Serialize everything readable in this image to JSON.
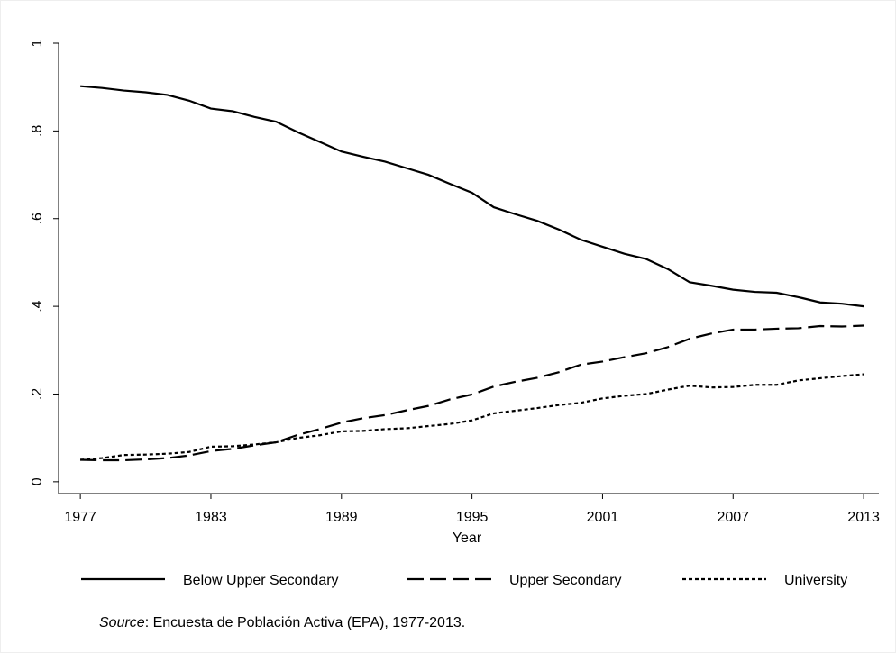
{
  "chart_data": {
    "type": "line",
    "x": [
      1977,
      1978,
      1979,
      1980,
      1981,
      1982,
      1983,
      1984,
      1985,
      1986,
      1987,
      1988,
      1989,
      1990,
      1991,
      1992,
      1993,
      1994,
      1995,
      1996,
      1997,
      1998,
      1999,
      2000,
      2001,
      2002,
      2003,
      2004,
      2005,
      2006,
      2007,
      2008,
      2009,
      2010,
      2011,
      2012,
      2013
    ],
    "series": [
      {
        "name": "Below Upper Secondary",
        "color": "#000000",
        "dash": "none",
        "values": [
          0.902,
          0.898,
          0.892,
          0.888,
          0.882,
          0.869,
          0.851,
          0.845,
          0.832,
          0.821,
          0.797,
          0.775,
          0.753,
          0.741,
          0.73,
          0.715,
          0.7,
          0.679,
          0.659,
          0.626,
          0.61,
          0.595,
          0.575,
          0.552,
          0.536,
          0.52,
          0.508,
          0.485,
          0.455,
          0.447,
          0.438,
          0.433,
          0.431,
          0.421,
          0.409,
          0.406,
          0.4
        ]
      },
      {
        "name": "Upper Secondary",
        "color": "#000000",
        "dash": "18 7",
        "values": [
          0.05,
          0.049,
          0.049,
          0.051,
          0.054,
          0.06,
          0.07,
          0.075,
          0.083,
          0.09,
          0.107,
          0.12,
          0.135,
          0.145,
          0.152,
          0.163,
          0.173,
          0.188,
          0.199,
          0.217,
          0.228,
          0.237,
          0.25,
          0.267,
          0.274,
          0.284,
          0.293,
          0.307,
          0.326,
          0.338,
          0.347,
          0.347,
          0.349,
          0.35,
          0.355,
          0.354,
          0.356
        ]
      },
      {
        "name": "University",
        "color": "#000000",
        "dash": "4 3",
        "values": [
          0.05,
          0.054,
          0.061,
          0.062,
          0.064,
          0.068,
          0.08,
          0.081,
          0.085,
          0.09,
          0.1,
          0.106,
          0.115,
          0.116,
          0.12,
          0.122,
          0.127,
          0.132,
          0.14,
          0.156,
          0.162,
          0.168,
          0.175,
          0.18,
          0.19,
          0.196,
          0.2,
          0.21,
          0.219,
          0.215,
          0.216,
          0.221,
          0.221,
          0.231,
          0.236,
          0.241,
          0.245
        ]
      }
    ],
    "x_label": "Year",
    "xlim": [
      1976,
      2013.7
    ],
    "xticks": [
      1977,
      1983,
      1989,
      1995,
      2001,
      2007,
      2013
    ],
    "ylim": [
      -0.027,
      1
    ],
    "yticks": [
      0,
      {
        "value": 0.2,
        "label": ".2"
      },
      {
        "value": 0.4,
        "label": ".4"
      },
      {
        "value": 0.6,
        "label": ".6"
      },
      {
        "value": 0.8,
        "label": ".8"
      },
      1
    ],
    "note_label": "Source",
    "note_text": ": Encuesta de Población Activa (EPA), 1977-2013."
  }
}
